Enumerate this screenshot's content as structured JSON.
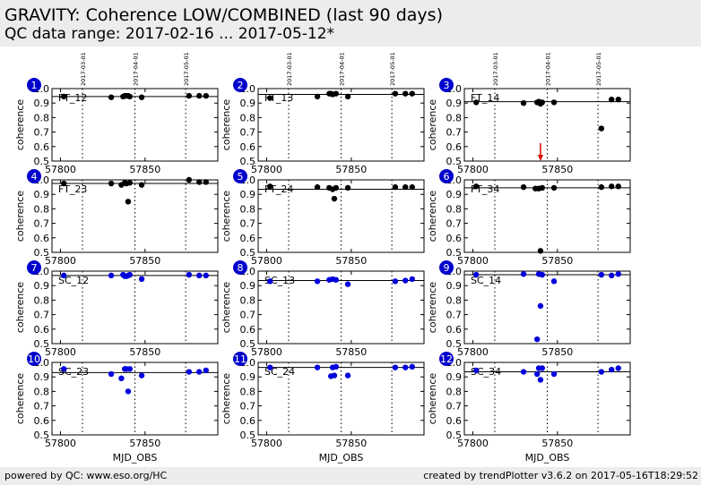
{
  "header": {
    "title": "GRAVITY: Coherence LOW/COMBINED (last 90 days)",
    "subtitle": "QC data range: 2017-02-16 ... 2017-05-12*"
  },
  "footer": {
    "left": "powered by QC: www.eso.org/HC",
    "right": "created by trendPlotter v3.6.2 on 2017-05-16T18:29:52"
  },
  "colors": {
    "ft": "#000000",
    "sc": "#0000dd",
    "badge": "#0000cc",
    "arrow": "#dd0000"
  },
  "chart_data": {
    "type": "scatter",
    "xlabel": "MJD_OBS",
    "ylabel": "coherence",
    "xlim": [
      57795,
      57893
    ],
    "ylim": [
      0.5,
      1.0
    ],
    "x_ticks": [
      57800,
      57850
    ],
    "y_ticks": [
      "0.5",
      "0.6",
      "0.7",
      "0.8",
      "0.9",
      "1.0"
    ],
    "date_markers": [
      {
        "label": "2017-03-01",
        "mjd": 57813
      },
      {
        "label": "2017-04-01",
        "mjd": 57844
      },
      {
        "label": "2017-05-01",
        "mjd": 57874
      }
    ],
    "panels": [
      {
        "num": "1",
        "label": "FT_12",
        "group": "ft",
        "ref": 0.945,
        "points": [
          [
            57802,
            0.945
          ],
          [
            57830,
            0.94
          ],
          [
            57837,
            0.945
          ],
          [
            57838,
            0.95
          ],
          [
            57839,
            0.95
          ],
          [
            57840,
            0.95
          ],
          [
            57841,
            0.945
          ],
          [
            57848,
            0.94
          ],
          [
            57876,
            0.95
          ],
          [
            57882,
            0.95
          ],
          [
            57886,
            0.95
          ]
        ]
      },
      {
        "num": "2",
        "label": "FT_13",
        "group": "ft",
        "ref": 0.96,
        "points": [
          [
            57802,
            0.935
          ],
          [
            57830,
            0.945
          ],
          [
            57837,
            0.965
          ],
          [
            57838,
            0.965
          ],
          [
            57839,
            0.96
          ],
          [
            57841,
            0.965
          ],
          [
            57848,
            0.945
          ],
          [
            57876,
            0.965
          ],
          [
            57882,
            0.965
          ],
          [
            57886,
            0.965
          ]
        ]
      },
      {
        "num": "3",
        "label": "FT_14",
        "group": "ft",
        "ref": 0.91,
        "arrow_x": 57840,
        "points": [
          [
            57802,
            0.905
          ],
          [
            57830,
            0.9
          ],
          [
            57838,
            0.905
          ],
          [
            57839,
            0.91
          ],
          [
            57840,
            0.895
          ],
          [
            57841,
            0.905
          ],
          [
            57848,
            0.905
          ],
          [
            57876,
            0.725
          ],
          [
            57882,
            0.925
          ],
          [
            57886,
            0.925
          ]
        ]
      },
      {
        "num": "4",
        "label": "FT_23",
        "group": "ft",
        "ref": 0.975,
        "points": [
          [
            57802,
            0.975
          ],
          [
            57830,
            0.975
          ],
          [
            57836,
            0.965
          ],
          [
            57838,
            0.98
          ],
          [
            57839,
            0.975
          ],
          [
            57840,
            0.85
          ],
          [
            57841,
            0.98
          ],
          [
            57848,
            0.965
          ],
          [
            57876,
            1.0
          ],
          [
            57882,
            0.985
          ],
          [
            57886,
            0.985
          ]
        ]
      },
      {
        "num": "5",
        "label": "FT_24",
        "group": "ft",
        "ref": 0.935,
        "points": [
          [
            57802,
            0.955
          ],
          [
            57830,
            0.95
          ],
          [
            57837,
            0.945
          ],
          [
            57839,
            0.935
          ],
          [
            57840,
            0.87
          ],
          [
            57841,
            0.945
          ],
          [
            57848,
            0.945
          ],
          [
            57876,
            0.95
          ],
          [
            57882,
            0.95
          ],
          [
            57886,
            0.95
          ]
        ]
      },
      {
        "num": "6",
        "label": "FT_34",
        "group": "ft",
        "ref": 0.945,
        "points": [
          [
            57802,
            0.955
          ],
          [
            57830,
            0.95
          ],
          [
            57837,
            0.94
          ],
          [
            57839,
            0.94
          ],
          [
            57840,
            0.51
          ],
          [
            57841,
            0.945
          ],
          [
            57848,
            0.945
          ],
          [
            57876,
            0.95
          ],
          [
            57882,
            0.955
          ],
          [
            57886,
            0.955
          ]
        ]
      },
      {
        "num": "7",
        "label": "SC_12",
        "group": "sc",
        "ref": 0.97,
        "points": [
          [
            57802,
            0.97
          ],
          [
            57830,
            0.97
          ],
          [
            57837,
            0.975
          ],
          [
            57838,
            0.965
          ],
          [
            57839,
            0.965
          ],
          [
            57840,
            0.97
          ],
          [
            57841,
            0.975
          ],
          [
            57848,
            0.945
          ],
          [
            57876,
            0.975
          ],
          [
            57882,
            0.97
          ],
          [
            57886,
            0.97
          ]
        ]
      },
      {
        "num": "8",
        "label": "SC_13",
        "group": "sc",
        "ref": 0.935,
        "points": [
          [
            57802,
            0.93
          ],
          [
            57830,
            0.93
          ],
          [
            57837,
            0.94
          ],
          [
            57839,
            0.945
          ],
          [
            57841,
            0.94
          ],
          [
            57848,
            0.91
          ],
          [
            57876,
            0.93
          ],
          [
            57882,
            0.935
          ],
          [
            57886,
            0.945
          ]
        ]
      },
      {
        "num": "9",
        "label": "SC_14",
        "group": "sc",
        "ref": 0.975,
        "points": [
          [
            57802,
            0.975
          ],
          [
            57830,
            0.98
          ],
          [
            57838,
            0.53
          ],
          [
            57839,
            0.98
          ],
          [
            57840,
            0.76
          ],
          [
            57841,
            0.975
          ],
          [
            57848,
            0.93
          ],
          [
            57876,
            0.975
          ],
          [
            57882,
            0.97
          ],
          [
            57886,
            0.98
          ]
        ]
      },
      {
        "num": "10",
        "label": "SC_23",
        "group": "sc",
        "ref": 0.93,
        "points": [
          [
            57802,
            0.955
          ],
          [
            57830,
            0.92
          ],
          [
            57836,
            0.89
          ],
          [
            57838,
            0.955
          ],
          [
            57839,
            0.955
          ],
          [
            57840,
            0.8
          ],
          [
            57841,
            0.955
          ],
          [
            57848,
            0.91
          ],
          [
            57876,
            0.935
          ],
          [
            57882,
            0.935
          ],
          [
            57886,
            0.945
          ]
        ]
      },
      {
        "num": "11",
        "label": "SC_24",
        "group": "sc",
        "ref": 0.965,
        "points": [
          [
            57802,
            0.965
          ],
          [
            57830,
            0.965
          ],
          [
            57838,
            0.905
          ],
          [
            57839,
            0.965
          ],
          [
            57840,
            0.91
          ],
          [
            57841,
            0.97
          ],
          [
            57848,
            0.91
          ],
          [
            57876,
            0.965
          ],
          [
            57882,
            0.965
          ],
          [
            57886,
            0.97
          ]
        ]
      },
      {
        "num": "12",
        "label": "SC_34",
        "group": "sc",
        "ref": 0.935,
        "points": [
          [
            57802,
            0.945
          ],
          [
            57830,
            0.935
          ],
          [
            57838,
            0.92
          ],
          [
            57839,
            0.96
          ],
          [
            57840,
            0.88
          ],
          [
            57841,
            0.96
          ],
          [
            57848,
            0.92
          ],
          [
            57876,
            0.935
          ],
          [
            57882,
            0.95
          ],
          [
            57886,
            0.96
          ]
        ]
      }
    ]
  }
}
